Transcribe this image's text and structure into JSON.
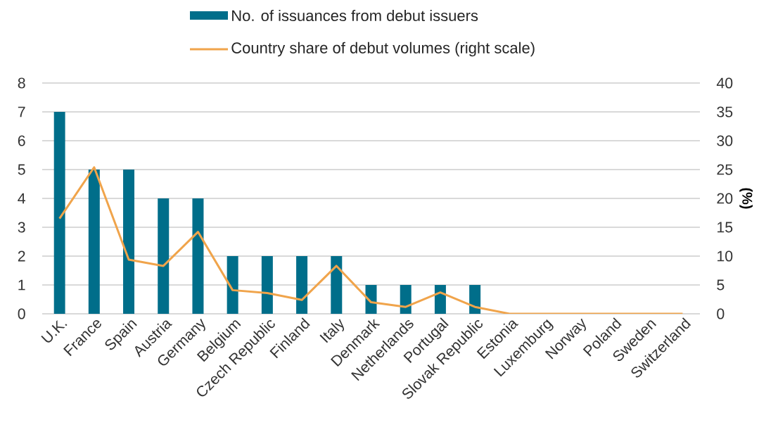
{
  "chart_data": {
    "type": "bar",
    "categories": [
      "U.K.",
      "France",
      "Spain",
      "Austria",
      "Germany",
      "Belgium",
      "Czech Republic",
      "Finland",
      "Italy",
      "Denmark",
      "Netherlands",
      "Portugal",
      "Slovak Republic",
      "Estonia",
      "Luxemburg",
      "Norway",
      "Poland",
      "Sweden",
      "Switzerland"
    ],
    "y2label": "(%)",
    "series": [
      {
        "name": "No. of issuances from debut issuers",
        "color": "#006e8a",
        "values": [
          7,
          5,
          5,
          4,
          4,
          2,
          2,
          2,
          2,
          1,
          1,
          1,
          1,
          0,
          0,
          0,
          0,
          0,
          0
        ]
      },
      {
        "name": "Country share of debut volumes (right scale)",
        "type": "line",
        "axis": "y2",
        "color": "#f0a44b",
        "values": [
          16.5,
          25.4,
          9.4,
          8.3,
          14.2,
          4.1,
          3.6,
          2.4,
          8.3,
          2.0,
          1.2,
          3.7,
          1.2,
          0,
          0,
          0,
          0,
          0,
          0
        ]
      }
    ],
    "ylim": [
      0,
      8
    ],
    "yticks": [
      0,
      1,
      2,
      3,
      4,
      5,
      6,
      7,
      8
    ],
    "y2lim": [
      0,
      40
    ],
    "y2ticks": [
      0,
      5,
      10,
      15,
      20,
      25,
      30,
      35,
      40
    ],
    "grid": "y",
    "legend": "top",
    "line_style": "solid",
    "marker": "none"
  }
}
